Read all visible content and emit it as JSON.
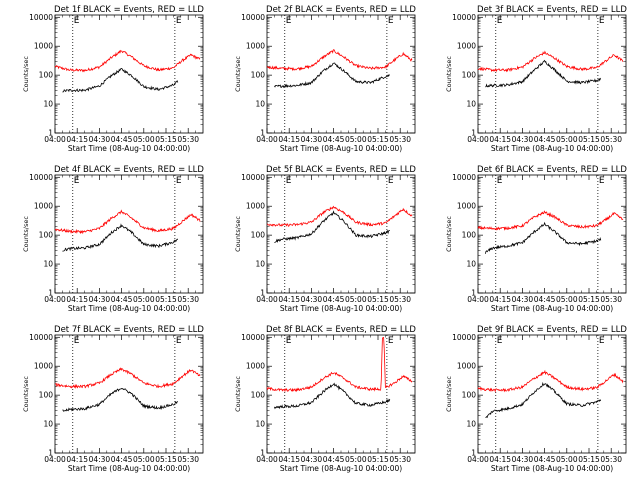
{
  "chart_data": [
    {
      "type": "line",
      "title": "Det 1f BLACK = Events, RED = LLD",
      "xlabel": "Start Time (08-Aug-10 04:00:00)",
      "ylabel": "Counts/sec",
      "x_ticks": [
        "04:00",
        "04:15",
        "04:30",
        "04:45",
        "05:00",
        "05:15",
        "05:30"
      ],
      "y_ticks": [
        "1",
        "10",
        "100",
        "1000",
        "10000"
      ],
      "ylim": [
        1,
        12000
      ],
      "log_y": true,
      "vlines": [
        "04:12",
        "05:21"
      ],
      "marker": "E",
      "series": [
        {
          "color": "#ff0000",
          "x": [
            "04:00",
            "04:10",
            "04:20",
            "04:30",
            "04:38",
            "04:45",
            "04:52",
            "05:00",
            "05:10",
            "05:20",
            "05:26",
            "05:32",
            "05:38"
          ],
          "y": [
            200,
            150,
            145,
            190,
            400,
            700,
            420,
            210,
            150,
            180,
            320,
            500,
            350
          ]
        },
        {
          "color": "#000000",
          "x": [
            "04:05",
            "04:10",
            "04:20",
            "04:30",
            "04:38",
            "04:45",
            "04:52",
            "05:00",
            "05:10",
            "05:20",
            "05:23"
          ],
          "y": [
            28,
            30,
            30,
            42,
            95,
            160,
            95,
            40,
            32,
            45,
            60
          ]
        }
      ]
    },
    {
      "type": "line",
      "title": "Det 2f BLACK = Events, RED = LLD",
      "xlabel": "Start Time (08-Aug-10 04:00:00)",
      "ylabel": "Counts/sec",
      "x_ticks": [
        "04:00",
        "04:15",
        "04:30",
        "04:45",
        "05:00",
        "05:15",
        "05:30"
      ],
      "y_ticks": [
        "1",
        "10",
        "100",
        "1000",
        "10000"
      ],
      "ylim": [
        1,
        12000
      ],
      "log_y": true,
      "vlines": [
        "04:12",
        "05:21"
      ],
      "marker": "E",
      "series": [
        {
          "color": "#ff0000",
          "x": [
            "04:00",
            "04:10",
            "04:20",
            "04:30",
            "04:38",
            "04:45",
            "04:52",
            "05:00",
            "05:10",
            "05:20",
            "05:26",
            "05:32",
            "05:38"
          ],
          "y": [
            190,
            170,
            165,
            200,
            420,
            700,
            420,
            210,
            170,
            190,
            330,
            550,
            320
          ]
        },
        {
          "color": "#000000",
          "x": [
            "04:05",
            "04:10",
            "04:20",
            "04:30",
            "04:38",
            "04:45",
            "04:52",
            "05:00",
            "05:10",
            "05:20",
            "05:23"
          ],
          "y": [
            40,
            42,
            44,
            55,
            140,
            260,
            140,
            60,
            55,
            90,
            100
          ]
        }
      ]
    },
    {
      "type": "line",
      "title": "Det 3f BLACK = Events, RED = LLD",
      "xlabel": "Start Time (08-Aug-10 04:00:00)",
      "ylabel": "Counts/sec",
      "x_ticks": [
        "04:00",
        "04:15",
        "04:30",
        "04:45",
        "05:00",
        "05:15",
        "05:30"
      ],
      "y_ticks": [
        "1",
        "10",
        "100",
        "1000",
        "10000"
      ],
      "ylim": [
        1,
        12000
      ],
      "log_y": true,
      "vlines": [
        "04:12",
        "05:21"
      ],
      "marker": "E",
      "series": [
        {
          "color": "#ff0000",
          "x": [
            "04:00",
            "04:10",
            "04:20",
            "04:30",
            "04:38",
            "04:45",
            "04:52",
            "05:00",
            "05:10",
            "05:20",
            "05:26",
            "05:32",
            "05:38"
          ],
          "y": [
            170,
            150,
            150,
            190,
            380,
            600,
            380,
            200,
            160,
            180,
            300,
            500,
            300
          ]
        },
        {
          "color": "#000000",
          "x": [
            "04:05",
            "04:10",
            "04:20",
            "04:30",
            "04:38",
            "04:45",
            "04:52",
            "05:00",
            "05:10",
            "05:20",
            "05:23"
          ],
          "y": [
            42,
            44,
            46,
            60,
            150,
            300,
            150,
            62,
            55,
            65,
            75
          ]
        }
      ]
    },
    {
      "type": "line",
      "title": "Det 4f BLACK = Events, RED = LLD",
      "xlabel": "Start Time (08-Aug-10 04:00:00)",
      "ylabel": "Counts/sec",
      "x_ticks": [
        "04:00",
        "04:15",
        "04:30",
        "04:45",
        "05:00",
        "05:15",
        "05:30"
      ],
      "y_ticks": [
        "1",
        "10",
        "100",
        "1000",
        "10000"
      ],
      "ylim": [
        1,
        12000
      ],
      "log_y": true,
      "vlines": [
        "04:12",
        "05:21"
      ],
      "marker": "E",
      "series": [
        {
          "color": "#ff0000",
          "x": [
            "04:00",
            "04:10",
            "04:20",
            "04:30",
            "04:38",
            "04:45",
            "04:52",
            "05:00",
            "05:10",
            "05:20",
            "05:26",
            "05:32",
            "05:38"
          ],
          "y": [
            160,
            135,
            130,
            170,
            380,
            650,
            380,
            180,
            140,
            170,
            300,
            520,
            320
          ]
        },
        {
          "color": "#000000",
          "x": [
            "04:05",
            "04:10",
            "04:20",
            "04:30",
            "04:38",
            "04:45",
            "04:52",
            "05:00",
            "05:10",
            "05:20",
            "05:23"
          ],
          "y": [
            30,
            34,
            36,
            48,
            120,
            220,
            120,
            48,
            42,
            58,
            70
          ]
        }
      ]
    },
    {
      "type": "line",
      "title": "Det 5f BLACK = Events, RED = LLD",
      "xlabel": "Start Time (08-Aug-10 04:00:00)",
      "ylabel": "Counts/sec",
      "x_ticks": [
        "04:00",
        "04:15",
        "04:30",
        "04:45",
        "05:00",
        "05:15",
        "05:30"
      ],
      "y_ticks": [
        "1",
        "10",
        "100",
        "1000",
        "10000"
      ],
      "ylim": [
        1,
        12000
      ],
      "log_y": true,
      "vlines": [
        "04:12",
        "05:21"
      ],
      "marker": "E",
      "series": [
        {
          "color": "#ff0000",
          "x": [
            "04:00",
            "04:10",
            "04:20",
            "04:30",
            "04:38",
            "04:45",
            "04:52",
            "05:00",
            "05:10",
            "05:20",
            "05:26",
            "05:32",
            "05:38"
          ],
          "y": [
            240,
            220,
            230,
            280,
            600,
            950,
            600,
            280,
            230,
            260,
            450,
            800,
            450
          ]
        },
        {
          "color": "#000000",
          "x": [
            "04:05",
            "04:10",
            "04:20",
            "04:30",
            "04:38",
            "04:45",
            "04:52",
            "05:00",
            "05:10",
            "05:20",
            "05:23"
          ],
          "y": [
            60,
            72,
            80,
            110,
            300,
            600,
            300,
            100,
            90,
            120,
            140
          ]
        }
      ]
    },
    {
      "type": "line",
      "title": "Det 6f BLACK = Events, RED = LLD",
      "xlabel": "Start Time (08-Aug-10 04:00:00)",
      "ylabel": "Counts/sec",
      "x_ticks": [
        "04:00",
        "04:15",
        "04:30",
        "04:45",
        "05:00",
        "05:15",
        "05:30"
      ],
      "y_ticks": [
        "1",
        "10",
        "100",
        "1000",
        "10000"
      ],
      "ylim": [
        1,
        12000
      ],
      "log_y": true,
      "vlines": [
        "04:12",
        "05:21"
      ],
      "marker": "E",
      "series": [
        {
          "color": "#ff0000",
          "x": [
            "04:00",
            "04:10",
            "04:20",
            "04:30",
            "04:38",
            "04:45",
            "04:52",
            "05:00",
            "05:10",
            "05:20",
            "05:26",
            "05:32",
            "05:38"
          ],
          "y": [
            180,
            170,
            175,
            210,
            420,
            620,
            420,
            220,
            190,
            210,
            330,
            560,
            340
          ]
        },
        {
          "color": "#000000",
          "x": [
            "04:05",
            "04:10",
            "04:20",
            "04:30",
            "04:38",
            "04:45",
            "04:52",
            "05:00",
            "05:10",
            "05:20",
            "05:23"
          ],
          "y": [
            25,
            36,
            42,
            55,
            130,
            240,
            130,
            55,
            50,
            62,
            72
          ]
        }
      ]
    },
    {
      "type": "line",
      "title": "Det 7f BLACK = Events, RED = LLD",
      "xlabel": "Start Time (08-Aug-10 04:00:00)",
      "ylabel": "Counts/sec",
      "x_ticks": [
        "04:00",
        "04:15",
        "04:30",
        "04:45",
        "05:00",
        "05:15",
        "05:30"
      ],
      "y_ticks": [
        "1",
        "10",
        "100",
        "1000",
        "10000"
      ],
      "ylim": [
        1,
        12000
      ],
      "log_y": true,
      "vlines": [
        "04:12",
        "05:21"
      ],
      "marker": "E",
      "series": [
        {
          "color": "#ff0000",
          "x": [
            "04:00",
            "04:10",
            "04:20",
            "04:30",
            "04:38",
            "04:45",
            "04:52",
            "05:00",
            "05:10",
            "05:20",
            "05:26",
            "05:32",
            "05:38"
          ],
          "y": [
            230,
            200,
            200,
            260,
            520,
            800,
            520,
            260,
            200,
            250,
            450,
            750,
            450
          ]
        },
        {
          "color": "#000000",
          "x": [
            "04:05",
            "04:10",
            "04:20",
            "04:30",
            "04:38",
            "04:45",
            "04:52",
            "05:00",
            "05:10",
            "05:20",
            "05:23"
          ],
          "y": [
            28,
            32,
            34,
            48,
            110,
            180,
            110,
            42,
            36,
            48,
            60
          ]
        }
      ]
    },
    {
      "type": "line",
      "title": "Det 8f BLACK = Events, RED = LLD",
      "xlabel": "Start Time (08-Aug-10 04:00:00)",
      "ylabel": "Counts/sec",
      "x_ticks": [
        "04:00",
        "04:15",
        "04:30",
        "04:45",
        "05:00",
        "05:15",
        "05:30"
      ],
      "y_ticks": [
        "1",
        "10",
        "100",
        "1000",
        "10000"
      ],
      "ylim": [
        1,
        12000
      ],
      "log_y": true,
      "vlines": [
        "04:12",
        "05:21"
      ],
      "marker": "E",
      "series": [
        {
          "color": "#ff0000",
          "x": [
            "04:00",
            "04:10",
            "04:20",
            "04:30",
            "04:38",
            "04:45",
            "04:52",
            "05:00",
            "05:10",
            "05:17",
            "05:18",
            "05:19",
            "05:20",
            "05:26",
            "05:32",
            "05:38"
          ],
          "y": [
            170,
            150,
            150,
            190,
            380,
            600,
            380,
            190,
            160,
            160,
            9000,
            9000,
            180,
            260,
            450,
            300
          ]
        },
        {
          "color": "#000000",
          "x": [
            "04:05",
            "04:10",
            "04:20",
            "04:30",
            "04:38",
            "04:45",
            "04:52",
            "05:00",
            "05:10",
            "05:20",
            "05:23"
          ],
          "y": [
            38,
            40,
            42,
            55,
            130,
            250,
            130,
            52,
            45,
            58,
            68
          ]
        }
      ]
    },
    {
      "type": "line",
      "title": "Det 9f BLACK = Events, RED = LLD",
      "xlabel": "Start Time (08-Aug-10 04:00:00)",
      "ylabel": "Counts/sec",
      "x_ticks": [
        "04:00",
        "04:15",
        "04:30",
        "04:45",
        "05:00",
        "05:15",
        "05:30"
      ],
      "y_ticks": [
        "1",
        "10",
        "100",
        "1000",
        "10000"
      ],
      "ylim": [
        1,
        12000
      ],
      "log_y": true,
      "vlines": [
        "04:12",
        "05:21"
      ],
      "marker": "E",
      "series": [
        {
          "color": "#ff0000",
          "x": [
            "04:00",
            "04:10",
            "04:20",
            "04:30",
            "04:38",
            "04:45",
            "04:52",
            "05:00",
            "05:10",
            "05:20",
            "05:26",
            "05:32",
            "05:38"
          ],
          "y": [
            170,
            150,
            150,
            190,
            380,
            620,
            380,
            190,
            160,
            180,
            300,
            520,
            300
          ]
        },
        {
          "color": "#000000",
          "x": [
            "04:05",
            "04:10",
            "04:20",
            "04:30",
            "04:38",
            "04:45",
            "04:52",
            "05:00",
            "05:10",
            "05:20",
            "05:23"
          ],
          "y": [
            16,
            28,
            34,
            48,
            130,
            260,
            130,
            50,
            44,
            58,
            68
          ]
        }
      ]
    }
  ]
}
